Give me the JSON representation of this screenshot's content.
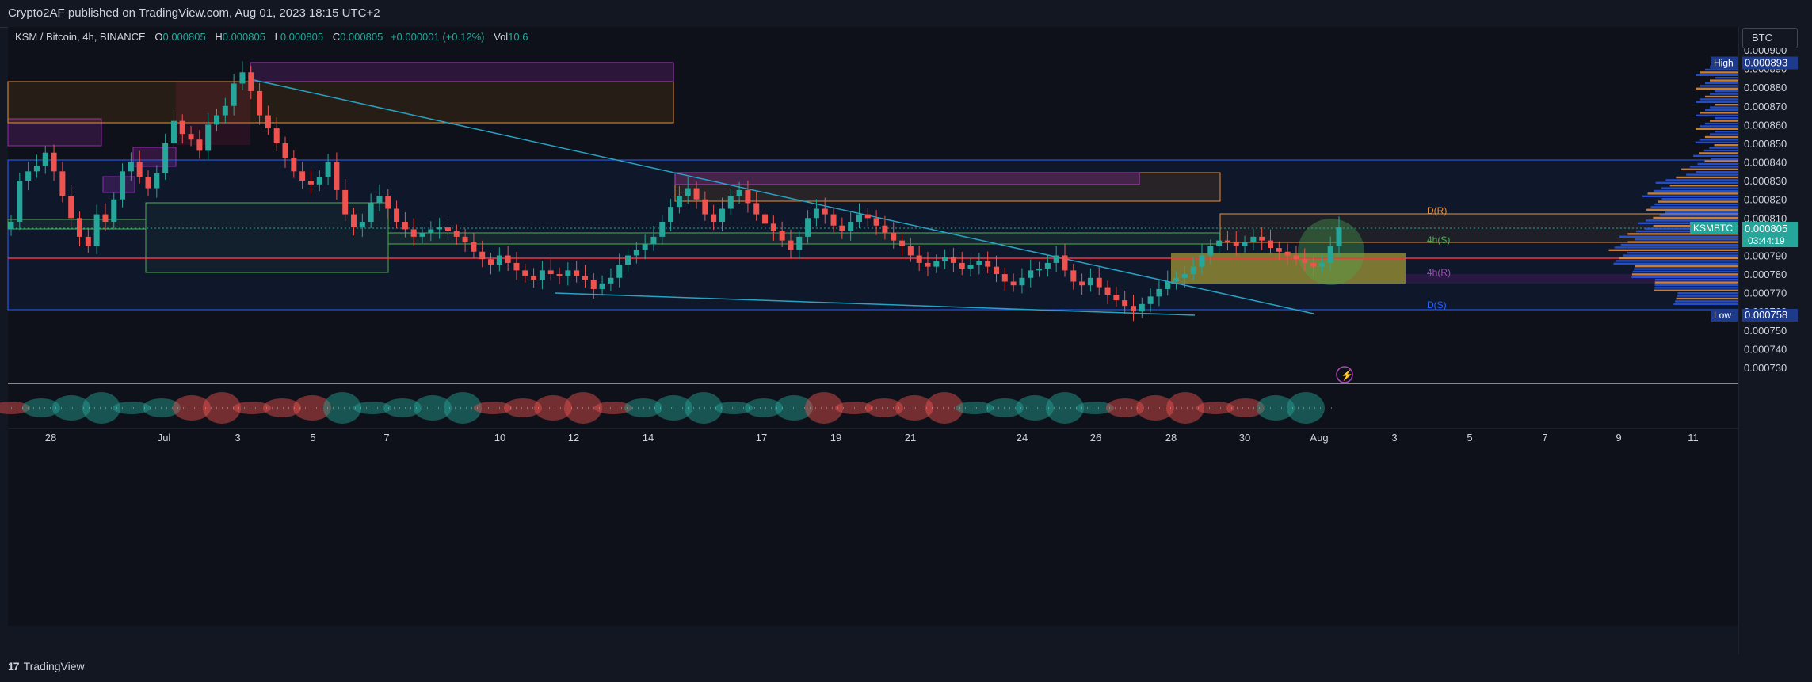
{
  "header": {
    "published": "Crypto2AF published on TradingView.com, Aug 01, 2023 18:15 UTC+2"
  },
  "legend": {
    "symbol": "KSM / Bitcoin, 4h, BINANCE",
    "open_label": "O",
    "open": "0.000805",
    "high_label": "H",
    "high": "0.000805",
    "low_label": "L",
    "low": "0.000805",
    "close_label": "C",
    "close": "0.000805",
    "change": "+0.000001 (+0.12%)",
    "vol_label": "Vol",
    "vol": "10.6"
  },
  "currency_button": "BTC",
  "footer": {
    "brand": "TradingView",
    "logo": "17"
  },
  "colors": {
    "up": "#26a69a",
    "down": "#ef5350",
    "background": "#0e1119",
    "accent": "#2962ff"
  },
  "chart_data": {
    "type": "candlestick",
    "symbol": "KSMBTC",
    "timeframe": "4h",
    "exchange": "BINANCE",
    "ylim": [
      0.000722,
      0.000906
    ],
    "price_ticks": [
      "0.000900",
      "0.000890",
      "0.000880",
      "0.000870",
      "0.000860",
      "0.000850",
      "0.000840",
      "0.000830",
      "0.000820",
      "0.000810",
      "0.000800",
      "0.000790",
      "0.000780",
      "0.000770",
      "0.000760",
      "0.000750",
      "0.000740",
      "0.000730"
    ],
    "date_ticks": [
      "28",
      "Jul",
      "3",
      "5",
      "7",
      "10",
      "12",
      "14",
      "17",
      "19",
      "21",
      "24",
      "26",
      "28",
      "30",
      "Aug",
      "3",
      "5",
      "7",
      "9",
      "11"
    ],
    "markers": {
      "high": {
        "label": "High",
        "value": "0.000893"
      },
      "low": {
        "label": "Low",
        "value": "0.000758"
      },
      "last": {
        "symbol": "KSMBTC",
        "value": "0.000805",
        "countdown": "03:44:19"
      }
    },
    "levels": [
      {
        "label": "D(R)",
        "value": 0.000811,
        "color": "#e89139"
      },
      {
        "label": "4h(S)",
        "value": 0.000799,
        "color": "#4caf50"
      },
      {
        "label": "4h(R)",
        "value": 0.00078,
        "color": "#ab47bc"
      },
      {
        "label": "D(S)",
        "value": 0.00076,
        "color": "#2962ff"
      }
    ],
    "range_box": {
      "top": 0.000842,
      "bottom": 0.00076
    },
    "red_line": 0.000789,
    "candle_closes": [
      0.000808,
      0.00083,
      0.000835,
      0.000838,
      0.000845,
      0.000835,
      0.000822,
      0.00081,
      0.0008,
      0.000795,
      0.000812,
      0.000808,
      0.00082,
      0.000835,
      0.00084,
      0.000832,
      0.000826,
      0.000834,
      0.00085,
      0.000862,
      0.000855,
      0.000852,
      0.000846,
      0.00086,
      0.000865,
      0.00087,
      0.000882,
      0.000888,
      0.000878,
      0.000865,
      0.000858,
      0.00085,
      0.000842,
      0.000835,
      0.00083,
      0.000828,
      0.000832,
      0.00084,
      0.000825,
      0.000812,
      0.000805,
      0.000808,
      0.000818,
      0.000822,
      0.000815,
      0.000808,
      0.000804,
      0.0008,
      0.000802,
      0.000804,
      0.000805,
      0.000803,
      0.0008,
      0.000797,
      0.000792,
      0.000788,
      0.000785,
      0.00079,
      0.000786,
      0.000782,
      0.000779,
      0.000777,
      0.000782,
      0.00078,
      0.000779,
      0.000782,
      0.000779,
      0.000777,
      0.000772,
      0.000775,
      0.000778,
      0.000785,
      0.00079,
      0.000793,
      0.000796,
      0.0008,
      0.000808,
      0.000816,
      0.000822,
      0.000826,
      0.00082,
      0.000812,
      0.000808,
      0.000815,
      0.000822,
      0.000825,
      0.000818,
      0.000812,
      0.000807,
      0.000803,
      0.000798,
      0.000793,
      0.0008,
      0.00081,
      0.000815,
      0.000812,
      0.000806,
      0.000803,
      0.000808,
      0.000812,
      0.00081,
      0.000806,
      0.000802,
      0.000798,
      0.000795,
      0.00079,
      0.000786,
      0.000784,
      0.000787,
      0.000789,
      0.000786,
      0.000783,
      0.000785,
      0.000787,
      0.000784,
      0.00078,
      0.000776,
      0.000774,
      0.000778,
      0.000782,
      0.000783,
      0.000786,
      0.00079,
      0.000782,
      0.000776,
      0.000774,
      0.000778,
      0.000773,
      0.000769,
      0.000766,
      0.000763,
      0.00076,
      0.000764,
      0.000768,
      0.000772,
      0.000776,
      0.000778,
      0.00078,
      0.000784,
      0.00079,
      0.000795,
      0.000798,
      0.000797,
      0.000795,
      0.000797,
      0.0008,
      0.000798,
      0.000794,
      0.000792,
      0.00079,
      0.000788,
      0.000786,
      0.000784,
      0.000786,
      0.000795,
      0.000805
    ]
  }
}
